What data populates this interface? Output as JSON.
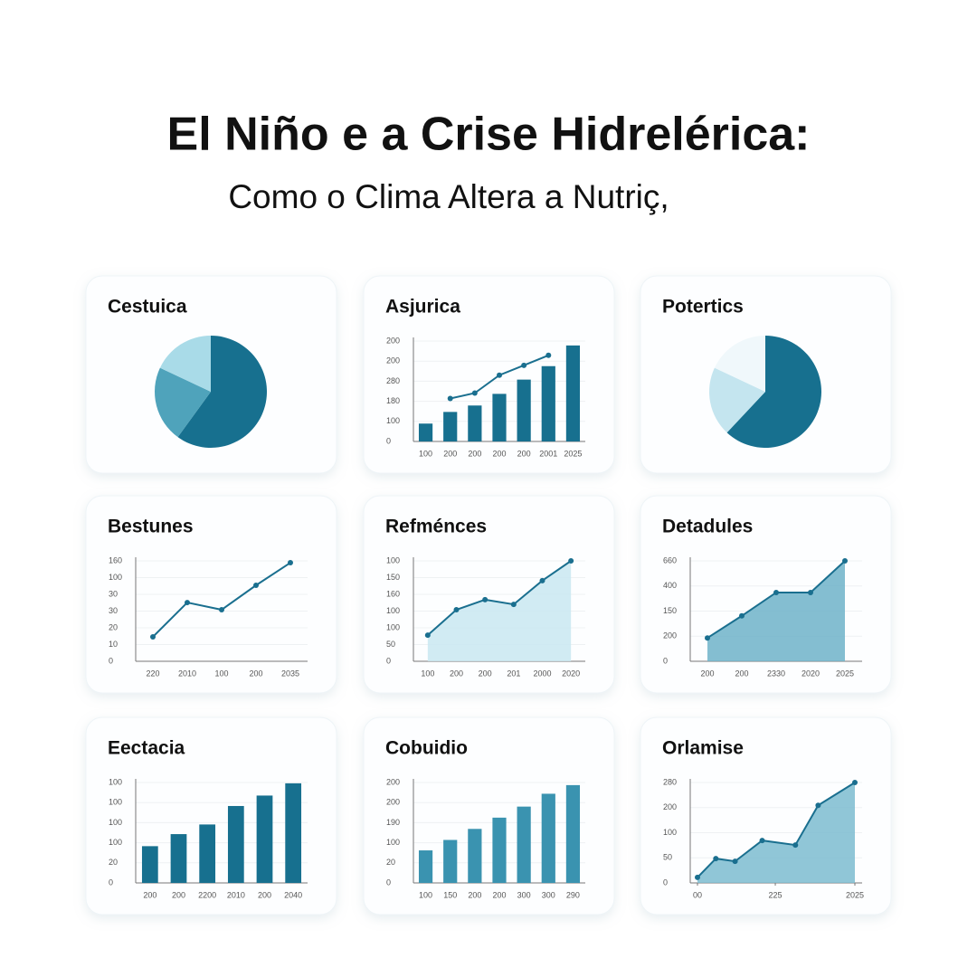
{
  "title": "El Niño e a Crise Hidrelérica:",
  "subtitle": "Como o Clima Altera a Nutriç,",
  "chart_data": [
    {
      "type": "pie",
      "title": "Cestuica",
      "values": [
        60,
        22,
        18
      ],
      "colors": [
        "#17708f",
        "#4fa3bb",
        "#a9dbe8"
      ]
    },
    {
      "type": "combo",
      "title": "Asjurica",
      "categories": [
        "100",
        "200",
        "200",
        "200",
        "200",
        "2001",
        "2025"
      ],
      "ylim": [
        0,
        500
      ],
      "yticks": [
        0,
        100,
        {
          "value": 200,
          "label": "180"
        },
        {
          "value": 300,
          "label": "280"
        },
        {
          "value": 400,
          "label": "200"
        },
        {
          "value": 500,
          "label": "200"
        }
      ],
      "series": [
        {
          "kind": "bar",
          "color": "#17708f",
          "values": [
            89,
            147,
            179,
            237,
            308,
            375,
            478
          ]
        },
        {
          "kind": "line",
          "color": "#1a6f8f",
          "values": [
            null,
            214,
            241,
            330,
            379,
            429,
            null
          ]
        }
      ]
    },
    {
      "type": "pie",
      "title": "Potertics",
      "values": [
        62,
        20,
        18
      ],
      "colors": [
        "#17708f",
        "#c4e5ef",
        "#f0f8fb"
      ]
    },
    {
      "type": "line",
      "title": "Bestunes",
      "categories": [
        "220",
        "2010",
        "100",
        "200",
        "2035"
      ],
      "ylim": [
        0,
        60
      ],
      "yticks": [
        0,
        10,
        20,
        30,
        {
          "value": 40,
          "label": "30"
        },
        {
          "value": 50,
          "label": "100"
        },
        {
          "value": 60,
          "label": "160"
        }
      ],
      "series": [
        {
          "color": "#1a6f8f",
          "values": [
            14.6,
            35.1,
            30.8,
            45.4,
            58.9
          ]
        }
      ]
    },
    {
      "type": "area",
      "title": "Refménces",
      "categories": [
        "100",
        "200",
        "200",
        "201",
        "2000",
        "2020"
      ],
      "ylim": [
        0,
        300
      ],
      "yticks": [
        0,
        50,
        100,
        {
          "value": 150,
          "label": "100"
        },
        {
          "value": 200,
          "label": "160"
        },
        {
          "value": 250,
          "label": "150"
        },
        {
          "value": 300,
          "label": "100"
        }
      ],
      "series": [
        {
          "color": "#1a6f8f",
          "area_color": "#c9e8f1",
          "values": [
            78,
            154,
            184,
            170,
            241,
            300
          ]
        }
      ]
    },
    {
      "type": "area",
      "title": "Detadules",
      "categories": [
        "200",
        "200",
        "2330",
        "2020",
        "2025"
      ],
      "ylim": [
        0,
        400
      ],
      "yticks": [
        0,
        {
          "value": 100,
          "label": "200"
        },
        {
          "value": 200,
          "label": "150"
        },
        {
          "value": 300,
          "label": "400"
        },
        {
          "value": 400,
          "label": "660"
        }
      ],
      "series": [
        {
          "color": "#1a6f8f",
          "area_color": "#6fb3c9",
          "values": [
            93,
            181,
            274,
            274,
            400
          ]
        }
      ]
    },
    {
      "type": "bar",
      "title": "Eectacia",
      "categories": [
        "200",
        "200",
        "2200",
        "2010",
        "200",
        "2040"
      ],
      "ylim": [
        0,
        500
      ],
      "yticks": [
        0,
        {
          "value": 100,
          "label": "20"
        },
        {
          "value": 200,
          "label": "100"
        },
        {
          "value": 300,
          "label": "100"
        },
        {
          "value": 400,
          "label": "100"
        },
        {
          "value": 500,
          "label": "100"
        }
      ],
      "series": [
        {
          "color": "#17708f",
          "values": [
            183,
            243,
            291,
            383,
            435,
            496
          ]
        }
      ]
    },
    {
      "type": "bar",
      "title": "Cobuidio",
      "categories": [
        "100",
        "150",
        "200",
        "200",
        "300",
        "300",
        "290"
      ],
      "ylim": [
        0,
        500
      ],
      "yticks": [
        0,
        {
          "value": 100,
          "label": "20"
        },
        {
          "value": 200,
          "label": "100"
        },
        {
          "value": 300,
          "label": "190"
        },
        {
          "value": 400,
          "label": "200"
        },
        {
          "value": 500,
          "label": "200"
        }
      ],
      "series": [
        {
          "color": "#3a93b0",
          "values": [
            162,
            214,
            269,
            325,
            380,
            444,
            487
          ]
        }
      ]
    },
    {
      "type": "area",
      "title": "Orlamise",
      "x": [
        0,
        21,
        43,
        74,
        112,
        138,
        180
      ],
      "xlim": [
        0,
        180
      ],
      "xticks": [
        {
          "value": 0,
          "label": "00"
        },
        {
          "value": 89,
          "label": "225"
        },
        {
          "value": 180,
          "label": "2025"
        }
      ],
      "ylim": [
        0,
        400
      ],
      "yticks": [
        0,
        {
          "value": 100,
          "label": "50"
        },
        {
          "value": 200,
          "label": "100"
        },
        {
          "value": 300,
          "label": "200"
        },
        {
          "value": 400,
          "label": "280"
        }
      ],
      "series": [
        {
          "color": "#1a6f8f",
          "area_color": "#7dbcd0",
          "values": [
            22,
            97,
            86,
            169,
            151,
            309,
            400
          ]
        }
      ]
    }
  ]
}
